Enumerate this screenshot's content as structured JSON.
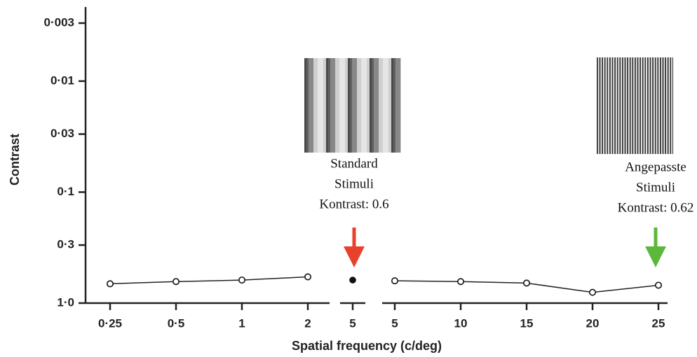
{
  "chart_data": {
    "type": "line",
    "y_label": "Contrast",
    "x_label": "Spatial frequency (c/deg)",
    "ylog": true,
    "ylim": [
      1.0,
      0.003
    ],
    "yticks": [
      {
        "value": 0.003,
        "label": "0·003"
      },
      {
        "value": 0.01,
        "label": "0·01"
      },
      {
        "value": 0.03,
        "label": "0·03"
      },
      {
        "value": 0.1,
        "label": "0·1"
      },
      {
        "value": 0.3,
        "label": "0·3"
      },
      {
        "value": 1.0,
        "label": "1·0"
      }
    ],
    "groups": [
      {
        "categories": [
          "0·25",
          "0·5",
          "1",
          "2"
        ],
        "values": [
          0.67,
          0.64,
          0.62,
          0.58
        ],
        "filled": false
      },
      {
        "categories": [
          "5"
        ],
        "values": [
          0.62
        ],
        "filled": true
      },
      {
        "categories": [
          "5",
          "10",
          "15",
          "20",
          "25"
        ],
        "values": [
          0.63,
          0.64,
          0.66,
          0.8,
          0.69
        ],
        "filled": false
      }
    ],
    "annotations": [
      {
        "lines": [
          "Standard",
          "Stimuli",
          "Kontrast: 0.6"
        ],
        "color": "#e8412c"
      },
      {
        "lines": [
          "Angepasste",
          "Stimuli",
          "Kontrast: 0.62"
        ],
        "color": "#5cb83a"
      }
    ]
  }
}
